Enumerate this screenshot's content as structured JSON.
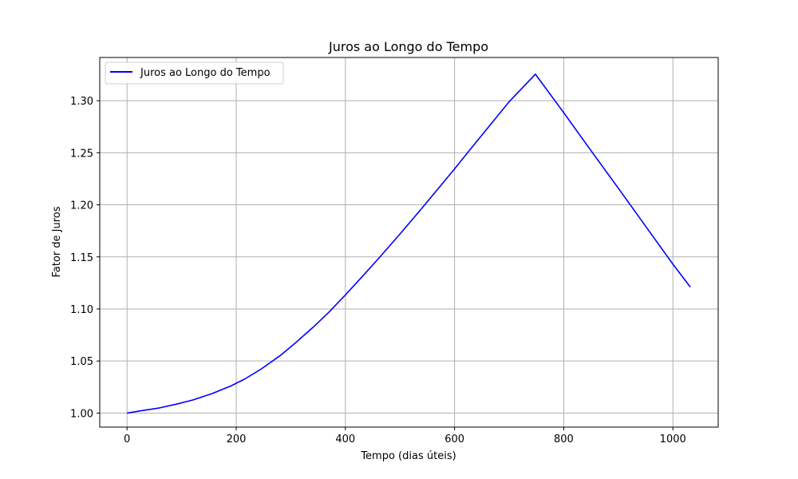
{
  "chart_data": {
    "type": "line",
    "title": "Juros ao Longo do Tempo",
    "xlabel": "Tempo (dias úteis)",
    "ylabel": "Fator de Juros",
    "xlim": [
      -50,
      1083
    ],
    "ylim": [
      0.9865,
      1.3415
    ],
    "xticks": [
      0,
      200,
      400,
      600,
      800,
      1000
    ],
    "yticks": [
      1.0,
      1.05,
      1.1,
      1.15,
      1.2,
      1.25,
      1.3
    ],
    "xtick_labels": [
      "0",
      "200",
      "400",
      "600",
      "800",
      "1000"
    ],
    "ytick_labels": [
      "1.00",
      "1.05",
      "1.10",
      "1.15",
      "1.20",
      "1.25",
      "1.30"
    ],
    "grid": true,
    "legend": {
      "position": "top-left",
      "entries": [
        "Juros ao Longo do Tempo"
      ]
    },
    "series": [
      {
        "name": "Juros ao Longo do Tempo",
        "color": "#0000ff",
        "x": [
          0,
          30,
          60,
          90,
          120,
          155,
          190,
          215,
          245,
          280,
          310,
          340,
          370,
          400,
          430,
          465,
          500,
          535,
          570,
          600,
          630,
          665,
          700,
          748,
          800,
          850,
          900,
          950,
          1000,
          1032
        ],
        "y": [
          1.0,
          1.0025,
          1.005,
          1.0085,
          1.0125,
          1.0185,
          1.026,
          1.0325,
          1.042,
          1.055,
          1.068,
          1.082,
          1.097,
          1.1135,
          1.1305,
          1.151,
          1.172,
          1.1935,
          1.2155,
          1.2345,
          1.254,
          1.2765,
          1.299,
          1.3255,
          1.2885,
          1.252,
          1.216,
          1.1795,
          1.143,
          1.121
        ]
      }
    ]
  }
}
